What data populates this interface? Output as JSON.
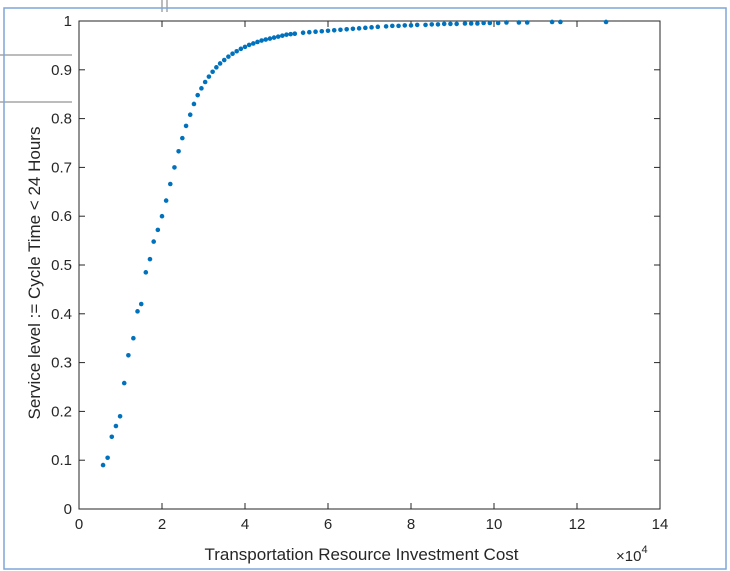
{
  "chart_data": {
    "type": "scatter",
    "title": "",
    "xlabel": "Transportation Resource Investment Cost",
    "ylabel": "Service level := Cycle Time < 24 Hours",
    "x_multiplier_label": "×10",
    "x_multiplier_exponent": "4",
    "xlim": [
      0,
      14
    ],
    "ylim": [
      0,
      1
    ],
    "x_ticks": [
      0,
      2,
      4,
      6,
      8,
      10,
      12,
      14
    ],
    "x_tick_labels": [
      "0",
      "2",
      "4",
      "6",
      "8",
      "10",
      "12",
      "14"
    ],
    "y_ticks": [
      0,
      0.1,
      0.2,
      0.3,
      0.4,
      0.5,
      0.6,
      0.7,
      0.8,
      0.9,
      1
    ],
    "y_tick_labels": [
      "0",
      "0.1",
      "0.2",
      "0.3",
      "0.4",
      "0.5",
      "0.6",
      "0.7",
      "0.8",
      "0.9",
      "1"
    ],
    "grid": false,
    "marker_color": "#0072BD",
    "series": [
      {
        "name": "",
        "x": [
          0.58,
          0.69,
          0.79,
          0.89,
          0.99,
          1.09,
          1.19,
          1.31,
          1.41,
          1.5,
          1.61,
          1.71,
          1.8,
          1.9,
          2.0,
          2.1,
          2.2,
          2.3,
          2.4,
          2.49,
          2.58,
          2.68,
          2.77,
          2.86,
          2.95,
          3.04,
          3.13,
          3.22,
          3.31,
          3.4,
          3.5,
          3.6,
          3.7,
          3.8,
          3.9,
          4.0,
          4.1,
          4.2,
          4.3,
          4.4,
          4.5,
          4.6,
          4.7,
          4.8,
          4.9,
          5.0,
          5.1,
          5.2,
          5.4,
          5.55,
          5.7,
          5.85,
          6.0,
          6.15,
          6.3,
          6.45,
          6.6,
          6.75,
          6.9,
          7.05,
          7.2,
          7.4,
          7.55,
          7.7,
          7.85,
          8.0,
          8.15,
          8.35,
          8.5,
          8.65,
          8.8,
          8.95,
          9.1,
          9.3,
          9.45,
          9.6,
          9.75,
          9.9,
          10.1,
          10.3,
          10.6,
          10.8,
          11.4,
          11.6,
          12.7
        ],
        "y": [
          0.09,
          0.105,
          0.148,
          0.17,
          0.19,
          0.258,
          0.315,
          0.35,
          0.405,
          0.42,
          0.485,
          0.512,
          0.548,
          0.572,
          0.6,
          0.632,
          0.666,
          0.7,
          0.733,
          0.76,
          0.785,
          0.808,
          0.83,
          0.848,
          0.862,
          0.875,
          0.886,
          0.896,
          0.905,
          0.913,
          0.92,
          0.927,
          0.933,
          0.938,
          0.943,
          0.947,
          0.951,
          0.954,
          0.957,
          0.96,
          0.962,
          0.964,
          0.966,
          0.968,
          0.97,
          0.972,
          0.973,
          0.974,
          0.976,
          0.977,
          0.978,
          0.979,
          0.98,
          0.981,
          0.982,
          0.983,
          0.984,
          0.985,
          0.986,
          0.987,
          0.988,
          0.989,
          0.99,
          0.99,
          0.991,
          0.991,
          0.992,
          0.992,
          0.993,
          0.993,
          0.994,
          0.994,
          0.994,
          0.995,
          0.995,
          0.995,
          0.996,
          0.996,
          0.996,
          0.997,
          0.997,
          0.997,
          0.998,
          0.998,
          0.998
        ]
      }
    ]
  }
}
